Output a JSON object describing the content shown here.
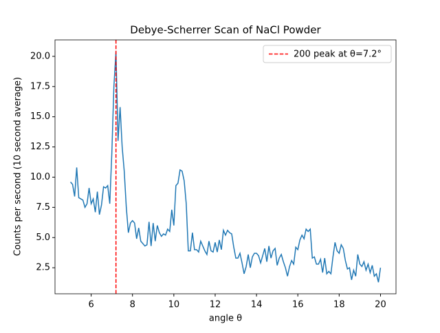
{
  "chart_data": {
    "type": "line",
    "title": "Debye-Scherrer Scan of NaCl Powder",
    "x_label": "angle θ",
    "y_label": "Counts per second (10 second average)",
    "x": [
      5,
      5.1,
      5.2,
      5.3,
      5.4,
      5.5,
      5.6,
      5.7,
      5.8,
      5.9,
      6,
      6.1,
      6.2,
      6.3,
      6.4,
      6.5,
      6.6,
      6.7,
      6.8,
      6.9,
      7,
      7.1,
      7.2,
      7.3,
      7.4,
      7.5,
      7.6,
      7.7,
      7.8,
      7.9,
      8,
      8.1,
      8.2,
      8.3,
      8.4,
      8.5,
      8.6,
      8.7,
      8.8,
      8.9,
      9,
      9.1,
      9.2,
      9.3,
      9.4,
      9.5,
      9.6,
      9.7,
      9.8,
      9.9,
      10,
      10.1,
      10.2,
      10.3,
      10.4,
      10.5,
      10.6,
      10.7,
      10.8,
      10.9,
      11,
      11.1,
      11.2,
      11.3,
      11.4,
      11.5,
      11.6,
      11.7,
      11.8,
      11.9,
      12,
      12.1,
      12.2,
      12.3,
      12.4,
      12.5,
      12.6,
      12.7,
      12.8,
      12.9,
      13,
      13.1,
      13.2,
      13.3,
      13.4,
      13.5,
      13.6,
      13.7,
      13.8,
      13.9,
      14,
      14.1,
      14.2,
      14.3,
      14.4,
      14.5,
      14.6,
      14.7,
      14.8,
      14.9,
      15,
      15.1,
      15.2,
      15.3,
      15.4,
      15.5,
      15.6,
      15.7,
      15.8,
      15.9,
      16,
      16.1,
      16.2,
      16.3,
      16.4,
      16.5,
      16.6,
      16.7,
      16.8,
      16.9,
      17,
      17.1,
      17.2,
      17.3,
      17.4,
      17.5,
      17.6,
      17.7,
      17.8,
      17.9,
      18,
      18.1,
      18.2,
      18.3,
      18.4,
      18.5,
      18.6,
      18.7,
      18.8,
      18.9,
      19,
      19.1,
      19.2,
      19.3,
      19.4,
      19.5,
      19.6,
      19.7,
      19.8,
      19.9,
      20
    ],
    "series": [
      {
        "color": "#1f77b4",
        "values": [
          9.6,
          9.4,
          8.4,
          10.8,
          8.3,
          8.2,
          8.1,
          7.5,
          7.8,
          9.1,
          7.8,
          8.2,
          7.1,
          8.8,
          6.9,
          7.7,
          9.2,
          9.1,
          9.3,
          7.8,
          12.0,
          17.5,
          20.4,
          13.0,
          15.8,
          12.5,
          10.5,
          7.5,
          5.4,
          6.2,
          6.4,
          6.2,
          4.9,
          5.8,
          4.7,
          4.5,
          4.3,
          4.4,
          6.3,
          4.3,
          6.2,
          4.7,
          6.0,
          5.4,
          5.1,
          5.3,
          5.2,
          5.7,
          5.5,
          7.3,
          6.0,
          9.3,
          9.5,
          10.6,
          10.5,
          9.7,
          7.8,
          3.9,
          3.9,
          5.4,
          4.0,
          4.0,
          3.8,
          4.7,
          4.3,
          3.9,
          3.6,
          4.7,
          3.9,
          3.8,
          4.6,
          3.8,
          4.8,
          4.0,
          5.6,
          5.2,
          5.6,
          5.4,
          5.3,
          4.2,
          3.3,
          3.3,
          3.7,
          2.9,
          2.0,
          2.6,
          3.6,
          2.5,
          3.4,
          3.7,
          3.7,
          3.5,
          2.9,
          3.5,
          4.1,
          3.0,
          4.3,
          3.3,
          3.9,
          4.1,
          2.7,
          3.3,
          3.6,
          3.0,
          2.5,
          1.8,
          2.6,
          3.1,
          2.8,
          4.2,
          4.0,
          4.8,
          5.2,
          4.9,
          5.7,
          5.5,
          5.7,
          3.3,
          3.4,
          2.8,
          2.8,
          3.2,
          2.1,
          3.3,
          2.0,
          2.2,
          2.0,
          3.4,
          4.6,
          3.9,
          3.7,
          4.4,
          4.1,
          3.1,
          2.4,
          2.5,
          1.5,
          2.3,
          1.8,
          3.6,
          2.8,
          2.6,
          3.0,
          2.3,
          2.8,
          2.1,
          2.7,
          1.8,
          2.0,
          1.3,
          2.5
        ]
      }
    ],
    "vline": {
      "x": 7.2,
      "label": "200 peak at θ=7.2°",
      "color": "#ff0000"
    },
    "legend": "upper right",
    "xlim": [
      4.25,
      20.75
    ],
    "xticks": [
      6,
      8,
      10,
      12,
      14,
      16,
      18,
      20
    ],
    "ylim": [
      0.345,
      21.36
    ],
    "yticks": [
      2.5,
      {
        "value": 5,
        "label": "5.0"
      },
      7.5,
      {
        "value": 10,
        "label": "10.0"
      },
      12.5,
      {
        "value": 15,
        "label": "15.0"
      },
      17.5,
      {
        "value": 20,
        "label": "20.0"
      }
    ]
  }
}
